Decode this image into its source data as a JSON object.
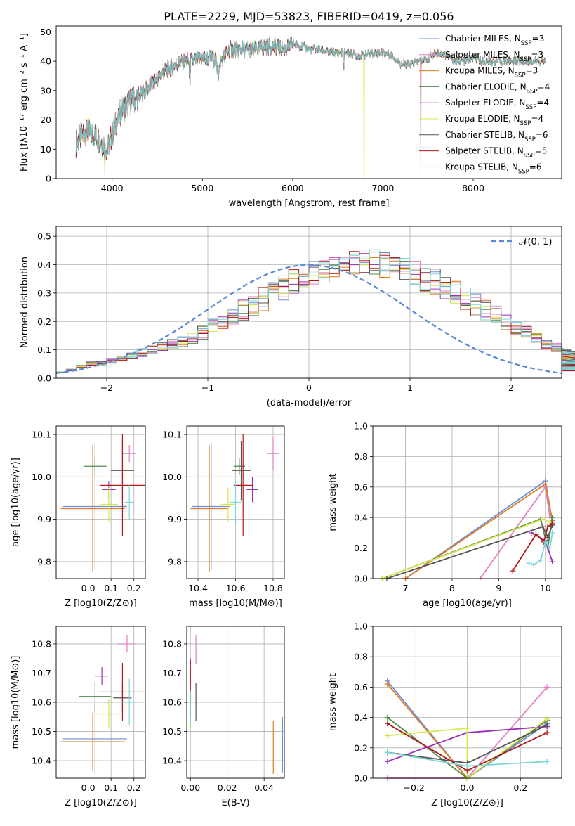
{
  "figure_title": "PLATE=2229, MJD=53823, FIBERID=0419, z=0.056",
  "colors": {
    "Chabrier MILES": "#6a8fd8",
    "Salpeter MILES": "#e17fbf",
    "Kroupa MILES": "#e07b20",
    "Chabrier ELODIE": "#4f8a4f",
    "Salpeter ELODIE": "#9b30b8",
    "Kroupa ELODIE": "#d4e84a",
    "Chabrier STELIB": "#555555",
    "Salpeter STELIB": "#b01a1a",
    "Kroupa STELIB": "#7fd6d6"
  },
  "chart_data": [
    {
      "id": "spectrum",
      "type": "line",
      "title": "PLATE=2229, MJD=53823, FIBERID=0419, z=0.056",
      "xlabel": "wavelength [Angstrom, rest frame]",
      "ylabel": "Flux [fλ10⁻¹⁷ erg cm⁻² s⁻¹ A⁻¹]",
      "xlim": [
        3380,
        8980
      ],
      "ylim": [
        0,
        52
      ],
      "xticks": [
        "4000",
        "5000",
        "6000",
        "7000",
        "8000"
      ],
      "yticks": [
        "0",
        "10",
        "20",
        "30",
        "40",
        "50"
      ],
      "legend_position": "upper-right",
      "legend": [
        {
          "name": "Chabrier MILES, N_SSP=3",
          "main": "Chabrier MILES, N",
          "sub": "SSP",
          "suffix": "=3"
        },
        {
          "name": "Salpeter MILES, N_SSP=3",
          "main": "Salpeter MILES, N",
          "sub": "SSP",
          "suffix": "=3"
        },
        {
          "name": "Kroupa MILES, N_SSP=3",
          "main": "Kroupa MILES, N",
          "sub": "SSP",
          "suffix": "=3"
        },
        {
          "name": "Chabrier ELODIE, N_SSP=4",
          "main": "Chabrier ELODIE, N",
          "sub": "SSP",
          "suffix": "=4"
        },
        {
          "name": "Salpeter ELODIE, N_SSP=4",
          "main": "Salpeter ELODIE, N",
          "sub": "SSP",
          "suffix": "=4"
        },
        {
          "name": "Kroupa ELODIE, N_SSP=4",
          "main": "Kroupa ELODIE, N",
          "sub": "SSP",
          "suffix": "=4"
        },
        {
          "name": "Chabrier STELIB, N_SSP=6",
          "main": "Chabrier STELIB, N",
          "sub": "SSP",
          "suffix": "=6"
        },
        {
          "name": "Salpeter STELIB, N_SSP=5",
          "main": "Salpeter STELIB, N",
          "sub": "SSP",
          "suffix": "=5"
        },
        {
          "name": "Kroupa STELIB, N_SSP=6",
          "main": "Kroupa STELIB, N",
          "sub": "SSP",
          "suffix": "=6"
        }
      ],
      "continuum": {
        "x": [
          3600,
          3700,
          3800,
          3900,
          3950,
          4000,
          4100,
          4200,
          4300,
          4400,
          4500,
          4600,
          4700,
          4800,
          4900,
          5000,
          5100,
          5200,
          5300,
          5400,
          5500,
          5600,
          5700,
          5800,
          5900,
          6000,
          6100,
          6200,
          6300,
          6400,
          6500,
          6600,
          6700,
          6800,
          6900,
          7000,
          7100,
          7200,
          7300,
          7400,
          7500,
          7600,
          7700,
          7800,
          7900,
          8000,
          8100,
          8200,
          8300,
          8400,
          8500,
          8600,
          8700,
          8800
        ],
        "y": [
          12,
          16,
          15,
          12,
          10,
          15,
          23,
          26,
          28,
          31,
          34,
          37,
          39,
          40,
          40,
          41,
          41,
          40,
          44,
          44,
          44,
          44,
          45,
          45,
          44,
          46,
          45,
          44,
          44,
          43,
          43,
          43,
          42,
          42,
          43,
          43,
          42,
          39,
          39,
          40,
          41,
          43,
          42,
          40,
          40,
          41,
          40,
          40,
          40,
          40,
          40,
          40,
          40,
          40
        ]
      },
      "dropouts": [
        {
          "x": 3920,
          "series": "Kroupa MILES"
        },
        {
          "x": 6790,
          "series": "Kroupa ELODIE"
        },
        {
          "x": 7420,
          "series": "Salpeter STELIB"
        }
      ]
    },
    {
      "id": "residuals",
      "type": "bar",
      "xlabel": "(data-model)/error",
      "ylabel": "Normed distribution",
      "xlim": [
        -2.5,
        2.5
      ],
      "ylim": [
        0,
        0.535
      ],
      "xticks": [
        "−2",
        "−1",
        "0",
        "1",
        "2"
      ],
      "yticks": [
        "0.0",
        "0.1",
        "0.2",
        "0.3",
        "0.4",
        "0.5"
      ],
      "legend_position": "upper-right",
      "legend": [
        "𝒩(0, 1)"
      ],
      "bin_width": 0.1,
      "series": [
        {
          "name": "Chabrier MILES",
          "values": [
            0.02,
            0.03,
            0.04,
            0.05,
            0.05,
            0.06,
            0.07,
            0.08,
            0.09,
            0.1,
            0.11,
            0.12,
            0.13,
            0.14,
            0.16,
            0.18,
            0.2,
            0.22,
            0.24,
            0.26,
            0.28,
            0.3,
            0.32,
            0.34,
            0.35,
            0.37,
            0.38,
            0.39,
            0.4,
            0.41,
            0.41,
            0.41,
            0.4,
            0.39,
            0.38,
            0.37,
            0.35,
            0.34,
            0.32,
            0.3,
            0.28,
            0.26,
            0.24,
            0.22,
            0.2,
            0.18,
            0.16,
            0.14,
            0.12,
            0.11,
            0.1,
            0.09,
            0.08,
            0.07,
            0.06,
            0.05,
            0.05,
            0.04,
            0.03,
            0.03,
            0.03
          ]
        }
      ],
      "reference": {
        "name": "𝒩(0, 1)",
        "mean": 0,
        "std": 1
      }
    },
    {
      "id": "age-vs-Z",
      "type": "scatter",
      "xlabel": "Z [log10(Z/Z⊙)]",
      "ylabel": "age  [log10(age/yr)]",
      "xlim": [
        -0.14,
        0.25
      ],
      "ylim": [
        9.76,
        10.12
      ],
      "xticks": [
        "0.0",
        "0.1",
        "0.2"
      ],
      "yticks": [
        "9.8",
        "9.9",
        "10.0",
        "10.1"
      ],
      "points": [
        {
          "series": "Chabrier MILES",
          "x": 0.03,
          "y": 9.93,
          "xerr": 0.14,
          "yerr": 0.15
        },
        {
          "series": "Salpeter MILES",
          "x": 0.18,
          "y": 10.055,
          "xerr": 0.03,
          "yerr": 0.02
        },
        {
          "series": "Kroupa MILES",
          "x": 0.02,
          "y": 9.925,
          "xerr": 0.14,
          "yerr": 0.15
        },
        {
          "series": "Chabrier ELODIE",
          "x": 0.03,
          "y": 10.025,
          "xerr": 0.05,
          "yerr": 0.02
        },
        {
          "series": "Salpeter ELODIE",
          "x": 0.09,
          "y": 9.97,
          "xerr": 0.03,
          "yerr": 0.02
        },
        {
          "series": "Kroupa ELODIE",
          "x": 0.09,
          "y": 9.935,
          "xerr": 0.04,
          "yerr": 0.04
        },
        {
          "series": "Chabrier STELIB",
          "x": 0.15,
          "y": 10.015,
          "xerr": 0.05,
          "yerr": 0.07
        },
        {
          "series": "Salpeter STELIB",
          "x": 0.15,
          "y": 9.98,
          "xerr": 0.1,
          "yerr": 0.12
        },
        {
          "series": "Kroupa STELIB",
          "x": 0.18,
          "y": 9.94,
          "xerr": 0.02,
          "yerr": 0.04
        }
      ]
    },
    {
      "id": "age-vs-mass",
      "type": "scatter",
      "xlabel": "mass [log10(M/M⊙)]",
      "ylabel": "",
      "xlim": [
        10.34,
        10.86
      ],
      "ylim": [
        9.76,
        10.12
      ],
      "xticks": [
        "10.4",
        "10.6",
        "10.8"
      ],
      "yticks": [
        "9.8",
        "9.9",
        "10.0",
        "10.1"
      ],
      "points": [
        {
          "series": "Chabrier MILES",
          "x": 10.47,
          "y": 9.93,
          "xerr": 0.1,
          "yerr": 0.15
        },
        {
          "series": "Salpeter MILES",
          "x": 10.8,
          "y": 10.055,
          "xerr": 0.03,
          "yerr": 0.04
        },
        {
          "series": "Kroupa MILES",
          "x": 10.46,
          "y": 9.925,
          "xerr": 0.1,
          "yerr": 0.15
        },
        {
          "series": "Chabrier ELODIE",
          "x": 10.62,
          "y": 10.025,
          "xerr": 0.03,
          "yerr": 0.02
        },
        {
          "series": "Salpeter ELODIE",
          "x": 10.69,
          "y": 9.97,
          "xerr": 0.03,
          "yerr": 0.03
        },
        {
          "series": "Kroupa ELODIE",
          "x": 10.56,
          "y": 9.935,
          "xerr": 0.04,
          "yerr": 0.04
        },
        {
          "series": "Chabrier STELIB",
          "x": 10.63,
          "y": 10.015,
          "xerr": 0.05,
          "yerr": 0.07
        },
        {
          "series": "Salpeter STELIB",
          "x": 10.64,
          "y": 9.98,
          "xerr": 0.05,
          "yerr": 0.12
        },
        {
          "series": "Kroupa STELIB",
          "x": 10.6,
          "y": 9.94,
          "xerr": 0.03,
          "yerr": 0.05
        }
      ]
    },
    {
      "id": "weight-vs-age",
      "type": "line",
      "xlabel": "age  [log10(age/yr)]",
      "ylabel": "mass weight",
      "xlim": [
        6.3,
        10.35
      ],
      "ylim": [
        0,
        1
      ],
      "xticks": [
        "7",
        "8",
        "9",
        "10"
      ],
      "yticks": [
        "0.0",
        "0.2",
        "0.4",
        "0.6",
        "0.8",
        "1.0"
      ],
      "series": [
        {
          "name": "Chabrier MILES",
          "x": [
            7.0,
            10.0,
            10.15
          ],
          "y": [
            0.0,
            0.64,
            0.37
          ]
        },
        {
          "name": "Salpeter MILES",
          "x": [
            8.6,
            10.0,
            10.1
          ],
          "y": [
            0.0,
            0.6,
            0.4
          ]
        },
        {
          "name": "Kroupa MILES",
          "x": [
            7.0,
            10.0,
            10.15
          ],
          "y": [
            0.0,
            0.62,
            0.38
          ]
        },
        {
          "name": "Chabrier ELODIE",
          "x": [
            6.5,
            9.9,
            10.05,
            10.15
          ],
          "y": [
            0.0,
            0.39,
            0.2,
            0.4
          ]
        },
        {
          "name": "Salpeter ELODIE",
          "x": [
            9.7,
            10.0,
            10.15
          ],
          "y": [
            0.3,
            0.25,
            0.11
          ]
        },
        {
          "name": "Kroupa ELODIE",
          "x": [
            6.5,
            9.95,
            10.1
          ],
          "y": [
            0.0,
            0.39,
            0.37
          ]
        },
        {
          "name": "Chabrier STELIB",
          "x": [
            6.6,
            9.95,
            10.05,
            10.15
          ],
          "y": [
            0.0,
            0.34,
            0.27,
            0.35
          ]
        },
        {
          "name": "Salpeter STELIB",
          "x": [
            9.3,
            9.8,
            9.97,
            10.05,
            10.15
          ],
          "y": [
            0.05,
            0.29,
            0.24,
            0.34,
            0.36
          ]
        },
        {
          "name": "Kroupa STELIB",
          "x": [
            9.65,
            9.75,
            9.9,
            10.0,
            10.1,
            10.15
          ],
          "y": [
            0.1,
            0.09,
            0.12,
            0.24,
            0.2,
            0.3
          ]
        }
      ]
    },
    {
      "id": "mass-vs-Z",
      "type": "scatter",
      "xlabel": "Z [log10(Z/Z⊙)]",
      "ylabel": "mass [log10(M/M⊙)]",
      "xlim": [
        -0.14,
        0.25
      ],
      "ylim": [
        10.34,
        10.86
      ],
      "xticks": [
        "0.0",
        "0.1",
        "0.2"
      ],
      "yticks": [
        "10.4",
        "10.5",
        "10.6",
        "10.7",
        "10.8"
      ],
      "points": [
        {
          "series": "Chabrier MILES",
          "x": 0.03,
          "y": 10.475,
          "xerr": 0.14,
          "yerr": 0.12
        },
        {
          "series": "Salpeter MILES",
          "x": 0.17,
          "y": 10.8,
          "xerr": 0.04,
          "yerr": 0.03
        },
        {
          "series": "Kroupa MILES",
          "x": 0.02,
          "y": 10.465,
          "xerr": 0.14,
          "yerr": 0.1
        },
        {
          "series": "Chabrier ELODIE",
          "x": 0.03,
          "y": 10.62,
          "xerr": 0.07,
          "yerr": 0.05
        },
        {
          "series": "Salpeter ELODIE",
          "x": 0.06,
          "y": 10.69,
          "xerr": 0.03,
          "yerr": 0.03
        },
        {
          "series": "Kroupa ELODIE",
          "x": 0.09,
          "y": 10.56,
          "xerr": 0.06,
          "yerr": 0.05
        },
        {
          "series": "Chabrier STELIB",
          "x": 0.15,
          "y": 10.615,
          "xerr": 0.04,
          "yerr": 0.05
        },
        {
          "series": "Salpeter STELIB",
          "x": 0.15,
          "y": 10.635,
          "xerr": 0.1,
          "yerr": 0.1
        },
        {
          "series": "Kroupa STELIB",
          "x": 0.18,
          "y": 10.6,
          "xerr": 0.03,
          "yerr": 0.08
        }
      ]
    },
    {
      "id": "mass-vs-EBV",
      "type": "scatter",
      "xlabel": "E(B-V)",
      "ylabel": "",
      "xlim": [
        -0.002,
        0.051
      ],
      "ylim": [
        10.34,
        10.86
      ],
      "xticks": [
        "0.00",
        "0.02",
        "0.04"
      ],
      "yticks": [
        "10.4",
        "10.5",
        "10.6",
        "10.7",
        "10.8"
      ],
      "points": [
        {
          "series": "Chabrier MILES",
          "x": 0.05,
          "y": 10.455,
          "xerr": 0,
          "yerr": 0.095
        },
        {
          "series": "Salpeter MILES",
          "x": 0.003,
          "y": 10.78,
          "xerr": 0,
          "yerr": 0.05
        },
        {
          "series": "Kroupa MILES",
          "x": 0.045,
          "y": 10.445,
          "xerr": 0,
          "yerr": 0.09
        },
        {
          "series": "Chabrier ELODIE",
          "x": 0.0,
          "y": 10.6,
          "xerr": 0,
          "yerr": 0.05
        },
        {
          "series": "Salpeter ELODIE",
          "x": 0.0,
          "y": 10.69,
          "xerr": 0,
          "yerr": 0.03
        },
        {
          "series": "Kroupa ELODIE",
          "x": 0.0,
          "y": 10.56,
          "xerr": 0,
          "yerr": 0.05
        },
        {
          "series": "Chabrier STELIB",
          "x": 0.003,
          "y": 10.6,
          "xerr": 0,
          "yerr": 0.065
        },
        {
          "series": "Salpeter STELIB",
          "x": 0.0,
          "y": 10.65,
          "xerr": 0,
          "yerr": 0.1
        },
        {
          "series": "Kroupa STELIB",
          "x": 0.0,
          "y": 10.58,
          "xerr": 0,
          "yerr": 0.06
        }
      ]
    },
    {
      "id": "weight-vs-Z",
      "type": "line",
      "xlabel": "Z [log10(Z/Z⊙)]",
      "ylabel": "mass weight",
      "xlim": [
        -0.355,
        0.355
      ],
      "ylim": [
        0,
        1
      ],
      "xticks": [
        "−0.2",
        "0.0",
        "0.2"
      ],
      "yticks": [
        "0.0",
        "0.2",
        "0.4",
        "0.6",
        "0.8",
        "1.0"
      ],
      "series": [
        {
          "name": "Chabrier MILES",
          "x": [
            -0.3,
            0.0,
            0.3
          ],
          "y": [
            0.64,
            0.0,
            0.36
          ]
        },
        {
          "name": "Salpeter MILES",
          "x": [
            -0.3,
            0.0,
            0.3
          ],
          "y": [
            0.0,
            0.0,
            0.6
          ]
        },
        {
          "name": "Kroupa MILES",
          "x": [
            -0.3,
            0.0,
            0.3
          ],
          "y": [
            0.62,
            0.0,
            0.38
          ]
        },
        {
          "name": "Chabrier ELODIE",
          "x": [
            -0.3,
            0.0,
            0.3
          ],
          "y": [
            0.4,
            0.0,
            0.38
          ]
        },
        {
          "name": "Salpeter ELODIE",
          "x": [
            -0.3,
            0.0,
            0.3
          ],
          "y": [
            0.11,
            0.3,
            0.34
          ]
        },
        {
          "name": "Kroupa ELODIE",
          "x": [
            -0.3,
            0.0,
            0.0,
            0.3
          ],
          "y": [
            0.28,
            0.33,
            0.0,
            0.39
          ]
        },
        {
          "name": "Chabrier STELIB",
          "x": [
            -0.3,
            0.0,
            0.3
          ],
          "y": [
            0.17,
            0.1,
            0.35
          ]
        },
        {
          "name": "Salpeter STELIB",
          "x": [
            -0.3,
            0.0,
            0.3
          ],
          "y": [
            0.36,
            0.05,
            0.3
          ]
        },
        {
          "name": "Kroupa STELIB",
          "x": [
            -0.3,
            0.0,
            0.3
          ],
          "y": [
            0.17,
            0.08,
            0.11
          ]
        }
      ]
    }
  ]
}
